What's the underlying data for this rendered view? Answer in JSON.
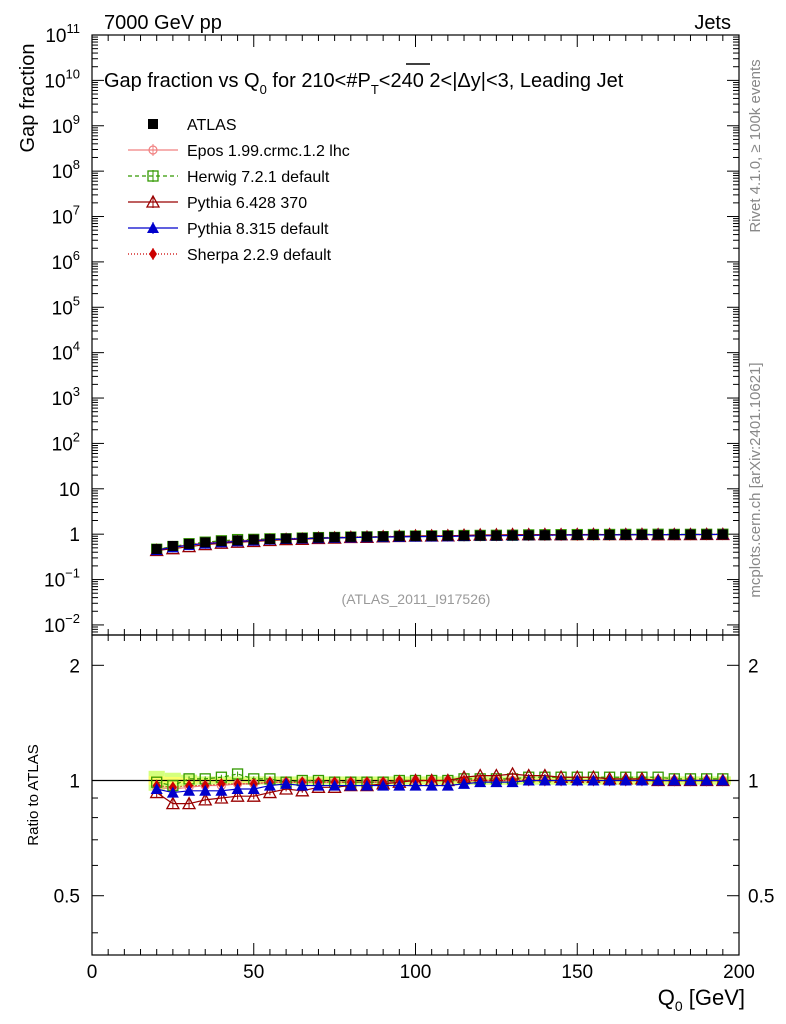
{
  "header": {
    "energy_label": "7000 GeV pp",
    "category_label": "Jets"
  },
  "chart_data": {
    "type": "scatter",
    "title_main": "Gap fraction vs Q",
    "title_sub": "0",
    "title_rest": " for 210<#P",
    "title_sub2": "T",
    "title_end": "<240  2<|Δy|<3, Leading Jet",
    "analysis_tag": "(ATLAS_2011_I917526)",
    "side_label_top": "Rivet 4.1.0, ≥ 100k events",
    "side_label_bottom": "mcplots.cern.ch [arXiv:2401.10621]",
    "xlabel": "Q",
    "xlabel_sub": "0",
    "xlabel_unit": " [GeV]",
    "ylabel_top": "Gap fraction",
    "ylabel_bottom": "Ratio to ATLAS",
    "xlim": [
      0,
      200
    ],
    "x_ticks": [
      "0",
      "50",
      "100",
      "150",
      "200"
    ],
    "top_yscale": "log",
    "top_ylim": [
      0.006,
      100000000000
    ],
    "top_y_ticks": [
      {
        "base": "10",
        "exp": "11"
      },
      {
        "base": "10",
        "exp": "10"
      },
      {
        "base": "10",
        "exp": "9"
      },
      {
        "base": "10",
        "exp": "8"
      },
      {
        "base": "10",
        "exp": "7"
      },
      {
        "base": "10",
        "exp": "6"
      },
      {
        "base": "10",
        "exp": "5"
      },
      {
        "base": "10",
        "exp": "4"
      },
      {
        "base": "10",
        "exp": "3"
      },
      {
        "base": "10",
        "exp": "2"
      },
      {
        "base": "10",
        "exp": ""
      },
      {
        "base": "1",
        "exp": ""
      },
      {
        "base": "10",
        "exp": "−1"
      },
      {
        "base": "10",
        "exp": "−2"
      }
    ],
    "ratio_yscale": "log",
    "ratio_ylim": [
      0.35,
      2.4
    ],
    "ratio_y_ticks": [
      "0.5",
      "1",
      "2"
    ],
    "x": [
      20,
      25,
      30,
      35,
      40,
      45,
      50,
      55,
      60,
      65,
      70,
      75,
      80,
      85,
      90,
      95,
      100,
      105,
      110,
      115,
      120,
      125,
      130,
      135,
      140,
      145,
      150,
      155,
      160,
      165,
      170,
      175,
      180,
      185,
      190,
      195
    ],
    "atlas_values": [
      0.47,
      0.55,
      0.61,
      0.66,
      0.7,
      0.73,
      0.76,
      0.78,
      0.8,
      0.82,
      0.84,
      0.855,
      0.87,
      0.88,
      0.89,
      0.9,
      0.91,
      0.915,
      0.92,
      0.925,
      0.93,
      0.935,
      0.94,
      0.945,
      0.95,
      0.955,
      0.96,
      0.963,
      0.966,
      0.969,
      0.972,
      0.975,
      0.978,
      0.981,
      0.984,
      0.987
    ],
    "band_color": "#ccff66",
    "series": [
      {
        "name": "ATLAS",
        "color": "#000000",
        "marker": "filled-square",
        "dash": ""
      },
      {
        "name": "Epos 1.99.crmc.1.2 lhc",
        "color": "#f08080",
        "marker": "open-circle-plus",
        "dash": "",
        "ratio": [
          0.96,
          0.95,
          0.96,
          0.97,
          0.97,
          0.98,
          0.98,
          0.99,
          0.99,
          0.99,
          0.99,
          0.99,
          0.99,
          0.99,
          0.99,
          0.995,
          1.0,
          1.0,
          1.0,
          1.0,
          1.0,
          1.0,
          1.0,
          1.0,
          1.0,
          1.0,
          1.0,
          1.0,
          1.0,
          1.0,
          1.0,
          1.0,
          1.0,
          1.0,
          1.0,
          1.0
        ]
      },
      {
        "name": "Herwig 7.2.1 default",
        "color": "#339900",
        "marker": "open-square",
        "dash": "4,3",
        "ratio": [
          0.99,
          0.97,
          1.01,
          1.01,
          1.02,
          1.04,
          1.01,
          1.01,
          0.99,
          1.0,
          1.0,
          0.99,
          0.99,
          0.99,
          0.99,
          1.0,
          1.0,
          1.0,
          1.0,
          1.01,
          1.01,
          1.01,
          1.01,
          1.02,
          1.02,
          1.02,
          1.02,
          1.02,
          1.02,
          1.02,
          1.02,
          1.02,
          1.01,
          1.01,
          1.01,
          1.01
        ]
      },
      {
        "name": "Pythia 6.428 370",
        "color": "#990000",
        "marker": "open-triangle",
        "dash": "",
        "ratio": [
          0.93,
          0.87,
          0.87,
          0.89,
          0.9,
          0.91,
          0.91,
          0.93,
          0.95,
          0.94,
          0.96,
          0.96,
          0.97,
          0.97,
          0.98,
          0.99,
          1.0,
          1.0,
          1.0,
          1.02,
          1.03,
          1.03,
          1.04,
          1.03,
          1.03,
          1.02,
          1.02,
          1.02,
          1.01,
          1.01,
          1.01,
          1.0,
          1.0,
          1.0,
          1.0,
          1.0
        ]
      },
      {
        "name": "Pythia 8.315 default",
        "color": "#0000cc",
        "marker": "filled-triangle",
        "dash": "",
        "ratio": [
          0.95,
          0.93,
          0.94,
          0.94,
          0.94,
          0.95,
          0.95,
          0.97,
          0.98,
          0.97,
          0.97,
          0.97,
          0.97,
          0.97,
          0.97,
          0.97,
          0.97,
          0.97,
          0.97,
          0.98,
          0.99,
          0.99,
          0.99,
          1.0,
          1.0,
          1.0,
          1.0,
          1.0,
          1.0,
          1.0,
          1.0,
          1.0,
          1.0,
          1.0,
          1.0,
          1.0
        ]
      },
      {
        "name": "Sherpa 2.2.9 default",
        "color": "#cc0000",
        "marker": "filled-diamond",
        "dash": "1,2",
        "ratio": [
          0.97,
          0.96,
          0.97,
          0.97,
          0.98,
          0.98,
          0.98,
          0.99,
          0.99,
          0.99,
          0.99,
          0.99,
          0.99,
          0.99,
          0.99,
          1.0,
          1.0,
          1.0,
          1.0,
          1.0,
          1.0,
          1.0,
          1.0,
          1.0,
          1.0,
          1.0,
          1.0,
          1.0,
          1.0,
          1.0,
          1.0,
          1.0,
          1.0,
          1.0,
          1.0,
          1.0
        ]
      }
    ]
  }
}
